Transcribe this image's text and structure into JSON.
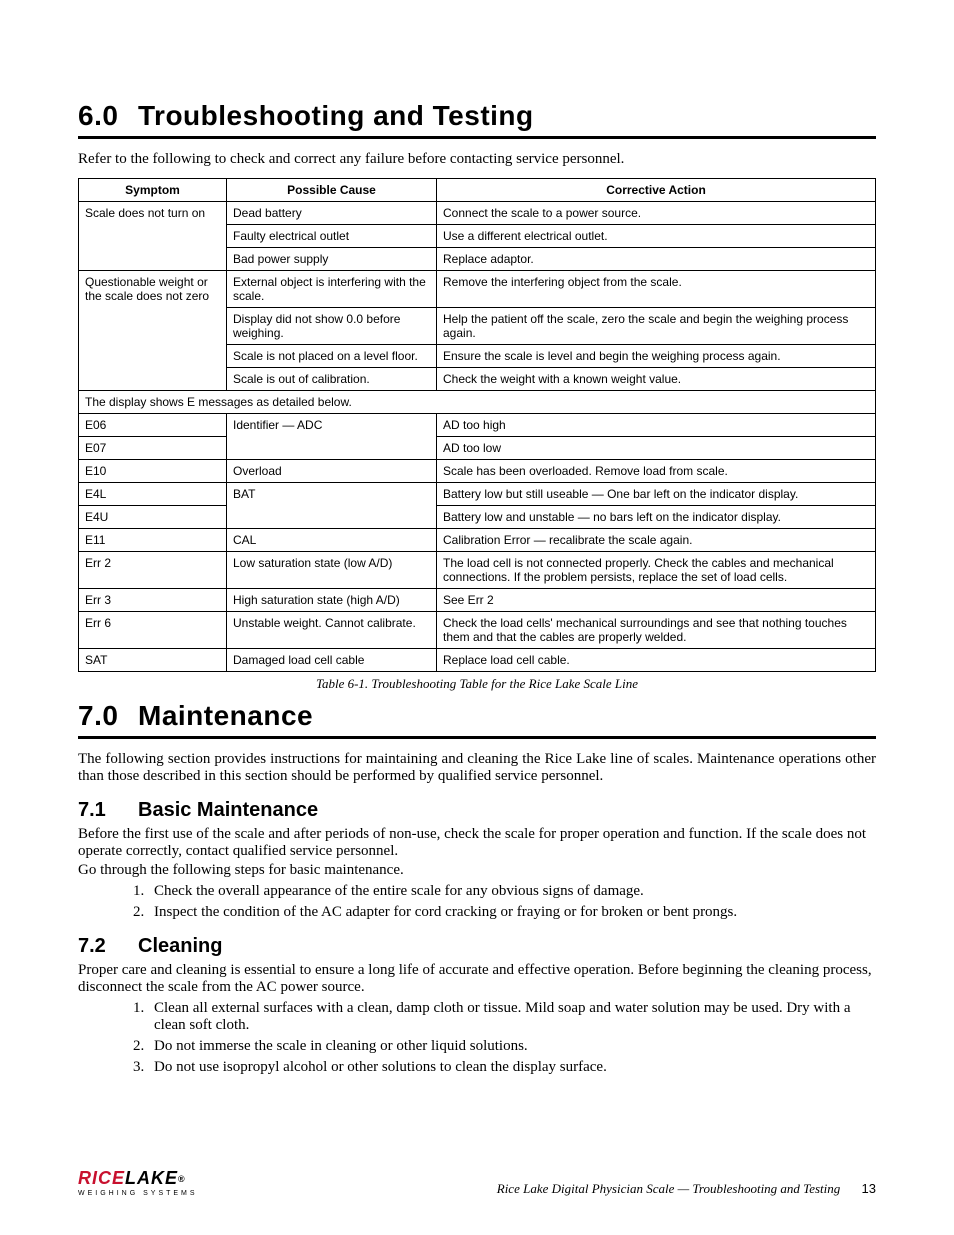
{
  "section6": {
    "number": "6.0",
    "title": "Troubleshooting and Testing",
    "intro": "Refer to the following to check and correct any failure before contacting service personnel."
  },
  "table": {
    "headers": {
      "symptom": "Symptom",
      "cause": "Possible Cause",
      "action": "Corrective Action"
    },
    "r1": {
      "symptom": "Scale does not turn on",
      "cause": "Dead battery",
      "action": "Connect the scale to a power source."
    },
    "r2": {
      "cause": "Faulty electrical outlet",
      "action": "Use a different electrical outlet."
    },
    "r3": {
      "cause": "Bad power supply",
      "action": "Replace adaptor."
    },
    "r4": {
      "symptom": "Questionable weight or the scale does not zero",
      "cause": "External object is interfering with the scale.",
      "action": "Remove the interfering object from the scale."
    },
    "r5": {
      "cause": "Display did not show 0.0 before weighing.",
      "action": "Help the patient off the scale, zero the scale and begin the weighing process again."
    },
    "r6": {
      "cause": "Scale is not placed on a level floor.",
      "action": "Ensure the scale is level and begin the weighing process again."
    },
    "r7": {
      "cause": "Scale is out of calibration.",
      "action": "Check the weight with a known weight value."
    },
    "r8": {
      "span": "The display shows E messages as detailed below."
    },
    "r9": {
      "symptom": "E06",
      "cause": "Identifier — ADC",
      "action": "AD too high"
    },
    "r10": {
      "symptom": "E07",
      "action": "AD too low"
    },
    "r11": {
      "symptom": "E10",
      "cause": "Overload",
      "action": "Scale has been overloaded. Remove load from scale."
    },
    "r12": {
      "symptom": "E4L",
      "cause": "BAT",
      "action": "Battery low but still useable — One bar left on the indicator display."
    },
    "r13": {
      "symptom": "E4U",
      "action": "Battery low and unstable — no bars left on the indicator display."
    },
    "r14": {
      "symptom": "E11",
      "cause": "CAL",
      "action": "Calibration Error — recalibrate the scale again."
    },
    "r15": {
      "symptom": "Err 2",
      "cause": "Low saturation state (low A/D)",
      "action": "The load cell is not connected properly. Check the cables and mechanical connections. If the problem persists, replace the set of load cells."
    },
    "r16": {
      "symptom": "Err 3",
      "cause": "High saturation state (high A/D)",
      "action": "See Err 2"
    },
    "r17": {
      "symptom": "Err 6",
      "cause": "Unstable weight. Cannot calibrate.",
      "action": "Check the load cells' mechanical surroundings and see that nothing touches them and that the cables are properly welded."
    },
    "r18": {
      "symptom": "SAT",
      "cause": "Damaged load cell cable",
      "action": "Replace load cell cable."
    },
    "caption": "Table 6-1. Troubleshooting Table for the Rice Lake Scale Line"
  },
  "section7": {
    "number": "7.0",
    "title": "Maintenance",
    "intro": "The following section provides instructions for maintaining and cleaning the Rice Lake line of scales. Maintenance operations other than those described in this section should be performed by qualified service personnel."
  },
  "sub71": {
    "number": "7.1",
    "title": "Basic Maintenance",
    "p1": "Before the first use of the scale and after periods of non-use, check the scale for proper operation and function. If the scale does not operate correctly, contact qualified service personnel.",
    "p2": "Go through the following steps for basic maintenance.",
    "li1": "Check the overall appearance of the entire scale for any obvious signs of damage.",
    "li2": "Inspect the condition of the AC adapter for cord cracking or fraying or for broken or bent prongs."
  },
  "sub72": {
    "number": "7.2",
    "title": "Cleaning",
    "p1": "Proper care and cleaning is essential to ensure a long life of accurate and effective operation. Before beginning the cleaning process, disconnect the scale from the AC power source.",
    "li1": "Clean all external surfaces with a clean, damp cloth or tissue. Mild soap and water solution may be used. Dry with a clean soft cloth.",
    "li2": "Do not immerse the scale in cleaning or other liquid solutions.",
    "li3": "Do not use isopropyl alcohol or other solutions to clean the display surface."
  },
  "footer": {
    "logo_main1": "RICE",
    "logo_main2": "LAKE",
    "logo_sub": "WEIGHING SYSTEMS",
    "text": "Rice Lake Digital Physician Scale — Troubleshooting and Testing",
    "page": "13"
  }
}
